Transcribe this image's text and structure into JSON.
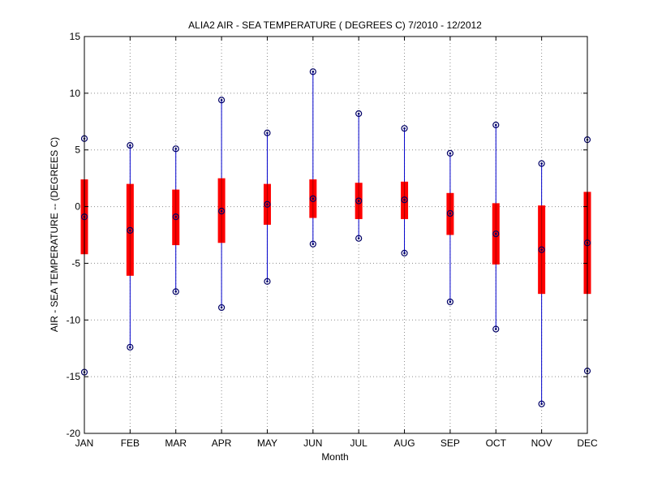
{
  "chart_data": {
    "type": "box",
    "title": "ALIA2  AIR - SEA TEMPERATURE ( DEGREES C) 7/2010 - 12/2012",
    "xlabel": "Month",
    "ylabel": "AIR - SEA TEMPERATURE -- (DEGREES C)",
    "ylim": [
      -20,
      15
    ],
    "yticks": [
      15,
      10,
      5,
      0,
      -5,
      -10,
      -15,
      -20
    ],
    "categories": [
      "JAN",
      "FEB",
      "MAR",
      "APR",
      "MAY",
      "JUN",
      "JUL",
      "AUG",
      "SEP",
      "OCT",
      "NOV",
      "DEC"
    ],
    "stats": [
      {
        "min": -14.6,
        "q1": -4.2,
        "median": -0.9,
        "q3": 2.4,
        "max": 6.0
      },
      {
        "min": -12.4,
        "q1": -6.1,
        "median": -2.1,
        "q3": 2.0,
        "max": 5.4
      },
      {
        "min": -7.5,
        "q1": -3.4,
        "median": -0.9,
        "q3": 1.5,
        "max": 5.1
      },
      {
        "min": -8.9,
        "q1": -3.2,
        "median": -0.4,
        "q3": 2.5,
        "max": 9.4
      },
      {
        "min": -6.6,
        "q1": -1.6,
        "median": 0.2,
        "q3": 2.0,
        "max": 6.5
      },
      {
        "min": -3.3,
        "q1": -1.0,
        "median": 0.7,
        "q3": 2.4,
        "max": 11.9
      },
      {
        "min": -2.8,
        "q1": -1.1,
        "median": 0.5,
        "q3": 2.1,
        "max": 8.2
      },
      {
        "min": -4.1,
        "q1": -1.1,
        "median": 0.6,
        "q3": 2.2,
        "max": 6.9
      },
      {
        "min": -8.4,
        "q1": -2.5,
        "median": -0.6,
        "q3": 1.2,
        "max": 4.7
      },
      {
        "min": -10.8,
        "q1": -5.1,
        "median": -2.4,
        "q3": 0.3,
        "max": 7.2
      },
      {
        "min": -17.4,
        "q1": -7.7,
        "median": -3.8,
        "q3": 0.1,
        "max": 3.8
      },
      {
        "min": -14.5,
        "q1": -7.7,
        "median": -3.2,
        "q3": 1.3,
        "max": 5.9
      }
    ],
    "grid": true,
    "colors": {
      "box": "#ff0000",
      "whisker": "#0000cc",
      "marker": "#000066",
      "grid": "#8c8c8c",
      "axis": "#000000"
    }
  }
}
